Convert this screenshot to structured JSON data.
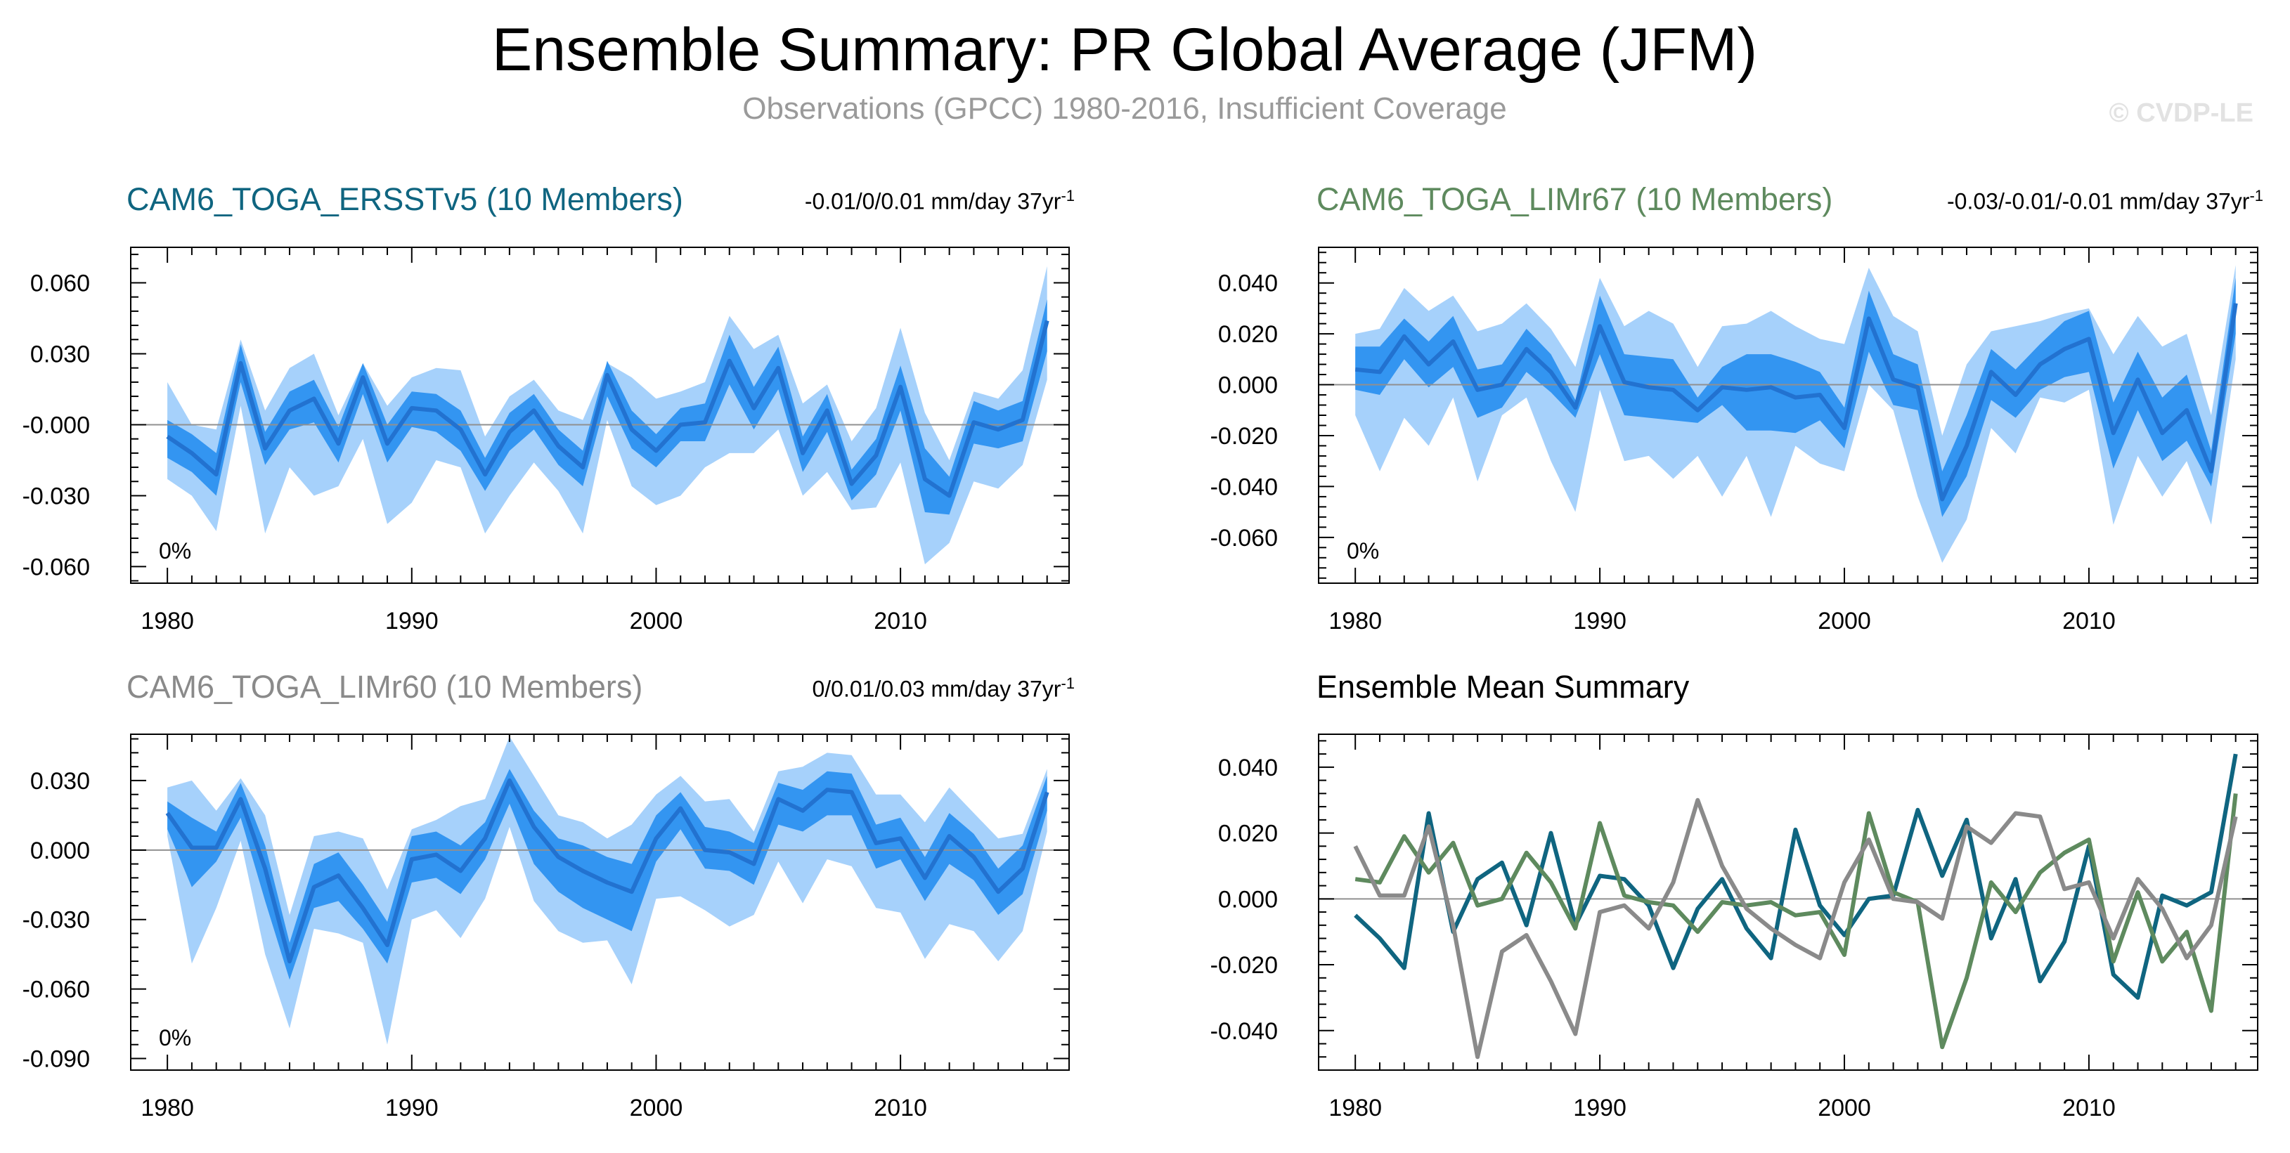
{
  "header": {
    "title": "Ensemble Summary: PR Global Average (JFM)",
    "subtitle": "Observations (GPCC) 1980-2016, Insufficient Coverage",
    "watermark": "© CVDP-LE"
  },
  "colors": {
    "band_outer": "#a6d1fb",
    "band_inner": "#3395f1",
    "mean_line": "#2272d0",
    "ersst": "#0f6580",
    "limr67": "#5e8a5e",
    "limr60": "#8a8a8a",
    "axis": "#000000",
    "zero_line": "#909090"
  },
  "panels": [
    {
      "id": "p1",
      "title": "CAM6_TOGA_ERSSTv5 (10 Members)",
      "title_color": "#0f6580",
      "stat_main": "-0.01/0/0.01 mm/day 37yr",
      "stat_sup": "-1",
      "pct": "0%"
    },
    {
      "id": "p2",
      "title": "CAM6_TOGA_LIMr67 (10 Members)",
      "title_color": "#5e8a5e",
      "stat_main": "-0.03/-0.01/-0.01 mm/day 37yr",
      "stat_sup": "-1",
      "pct": "0%"
    },
    {
      "id": "p3",
      "title": "CAM6_TOGA_LIMr60 (10 Members)",
      "title_color": "#8a8a8a",
      "stat_main": "0/0.01/0.03 mm/day 37yr",
      "stat_sup": "-1",
      "pct": "0%"
    },
    {
      "id": "p4",
      "title": "Ensemble Mean Summary",
      "title_color": "#000000"
    }
  ],
  "chart_data": [
    {
      "type": "area",
      "title": "CAM6_TOGA_ERSSTv5 (10 Members)",
      "x": [
        1980,
        1981,
        1982,
        1983,
        1984,
        1985,
        1986,
        1987,
        1988,
        1989,
        1990,
        1991,
        1992,
        1993,
        1994,
        1995,
        1996,
        1997,
        1998,
        1999,
        2000,
        2001,
        2002,
        2003,
        2004,
        2005,
        2006,
        2007,
        2008,
        2009,
        2010,
        2011,
        2012,
        2013,
        2014,
        2015,
        2016
      ],
      "xticks": [
        1980,
        1990,
        2000,
        2010
      ],
      "xtick_labels": [
        "1980",
        "1990",
        "2000",
        "2010"
      ],
      "ylim": [
        -0.067,
        0.075
      ],
      "yticks": [
        -0.06,
        -0.03,
        0.0,
        0.03,
        0.06
      ],
      "ytick_labels": [
        "-0.060",
        "-0.030",
        "-0.000",
        "0.030",
        "0.060"
      ],
      "mean": [
        -0.005,
        -0.012,
        -0.021,
        0.026,
        -0.01,
        0.006,
        0.011,
        -0.008,
        0.02,
        -0.008,
        0.007,
        0.006,
        -0.002,
        -0.021,
        -0.003,
        0.006,
        -0.009,
        -0.018,
        0.021,
        -0.002,
        -0.011,
        0.0,
        0.001,
        0.027,
        0.007,
        0.024,
        -0.012,
        0.006,
        -0.025,
        -0.013,
        0.016,
        -0.023,
        -0.03,
        0.001,
        -0.002,
        0.002,
        0.044
      ],
      "q25": [
        -0.014,
        -0.02,
        -0.03,
        0.018,
        -0.017,
        -0.002,
        0.001,
        -0.016,
        0.013,
        -0.016,
        -0.001,
        -0.003,
        -0.011,
        -0.028,
        -0.011,
        -0.002,
        -0.017,
        -0.026,
        0.012,
        -0.01,
        -0.018,
        -0.007,
        -0.007,
        0.017,
        -0.002,
        0.015,
        -0.02,
        -0.003,
        -0.032,
        -0.021,
        0.006,
        -0.037,
        -0.038,
        -0.008,
        -0.01,
        -0.007,
        0.031
      ],
      "q75": [
        0.002,
        -0.004,
        -0.012,
        0.034,
        -0.003,
        0.014,
        0.019,
        -0.001,
        0.026,
        0.0,
        0.014,
        0.013,
        0.006,
        -0.014,
        0.005,
        0.013,
        -0.002,
        -0.011,
        0.027,
        0.006,
        -0.004,
        0.007,
        0.009,
        0.038,
        0.016,
        0.033,
        -0.005,
        0.013,
        -0.019,
        -0.006,
        0.025,
        -0.01,
        -0.022,
        0.01,
        0.006,
        0.01,
        0.053
      ],
      "min": [
        -0.023,
        -0.03,
        -0.045,
        0.008,
        -0.046,
        -0.018,
        -0.03,
        -0.026,
        -0.006,
        -0.042,
        -0.033,
        -0.015,
        -0.018,
        -0.046,
        -0.03,
        -0.016,
        -0.028,
        -0.046,
        0.002,
        -0.026,
        -0.034,
        -0.03,
        -0.018,
        -0.012,
        -0.012,
        -0.002,
        -0.03,
        -0.02,
        -0.036,
        -0.035,
        -0.016,
        -0.059,
        -0.05,
        -0.024,
        -0.027,
        -0.017,
        0.019
      ],
      "max": [
        0.018,
        0.0,
        -0.002,
        0.036,
        0.006,
        0.024,
        0.03,
        0.004,
        0.026,
        0.008,
        0.02,
        0.024,
        0.023,
        -0.005,
        0.012,
        0.019,
        0.006,
        0.002,
        0.026,
        0.02,
        0.011,
        0.014,
        0.018,
        0.046,
        0.032,
        0.038,
        0.009,
        0.017,
        -0.007,
        0.007,
        0.041,
        0.005,
        -0.015,
        0.014,
        0.011,
        0.023,
        0.067
      ]
    },
    {
      "type": "area",
      "title": "CAM6_TOGA_LIMr67 (10 Members)",
      "x": [
        1980,
        1981,
        1982,
        1983,
        1984,
        1985,
        1986,
        1987,
        1988,
        1989,
        1990,
        1991,
        1992,
        1993,
        1994,
        1995,
        1996,
        1997,
        1998,
        1999,
        2000,
        2001,
        2002,
        2003,
        2004,
        2005,
        2006,
        2007,
        2008,
        2009,
        2010,
        2011,
        2012,
        2013,
        2014,
        2015,
        2016
      ],
      "xticks": [
        1980,
        1990,
        2000,
        2010
      ],
      "xtick_labels": [
        "1980",
        "1990",
        "2000",
        "2010"
      ],
      "ylim": [
        -0.078,
        0.054
      ],
      "yticks": [
        -0.06,
        -0.04,
        -0.02,
        0.0,
        0.02,
        0.04
      ],
      "ytick_labels": [
        "-0.060",
        "-0.040",
        "-0.020",
        "0.000",
        "0.020",
        "0.040"
      ],
      "mean": [
        0.006,
        0.005,
        0.019,
        0.008,
        0.017,
        -0.002,
        0.0,
        0.014,
        0.005,
        -0.009,
        0.023,
        0.001,
        -0.001,
        -0.002,
        -0.01,
        -0.001,
        -0.002,
        -0.001,
        -0.005,
        -0.004,
        -0.017,
        0.026,
        0.002,
        -0.001,
        -0.045,
        -0.024,
        0.005,
        -0.004,
        0.008,
        0.014,
        0.018,
        -0.019,
        0.002,
        -0.019,
        -0.01,
        -0.034,
        0.032
      ],
      "q25": [
        -0.002,
        -0.004,
        0.01,
        -0.001,
        0.007,
        -0.013,
        -0.009,
        0.005,
        -0.003,
        -0.013,
        0.012,
        -0.012,
        -0.013,
        -0.014,
        -0.015,
        -0.008,
        -0.018,
        -0.018,
        -0.019,
        -0.014,
        -0.025,
        0.013,
        -0.008,
        -0.01,
        -0.052,
        -0.036,
        -0.006,
        -0.013,
        -0.002,
        0.003,
        0.005,
        -0.033,
        -0.01,
        -0.03,
        -0.022,
        -0.04,
        0.02
      ],
      "q75": [
        0.015,
        0.015,
        0.026,
        0.017,
        0.027,
        0.006,
        0.008,
        0.022,
        0.012,
        -0.006,
        0.035,
        0.012,
        0.011,
        0.01,
        -0.005,
        0.007,
        0.012,
        0.012,
        0.009,
        0.005,
        -0.009,
        0.037,
        0.012,
        0.008,
        -0.034,
        -0.012,
        0.014,
        0.006,
        0.016,
        0.025,
        0.029,
        -0.007,
        0.013,
        -0.005,
        0.004,
        -0.026,
        0.042
      ],
      "min": [
        -0.012,
        -0.034,
        -0.013,
        -0.024,
        -0.005,
        -0.038,
        -0.012,
        -0.005,
        -0.03,
        -0.05,
        -0.002,
        -0.03,
        -0.028,
        -0.037,
        -0.028,
        -0.044,
        -0.028,
        -0.052,
        -0.024,
        -0.031,
        -0.034,
        0.0,
        -0.01,
        -0.044,
        -0.07,
        -0.053,
        -0.017,
        -0.027,
        -0.005,
        -0.007,
        -0.002,
        -0.055,
        -0.028,
        -0.044,
        -0.03,
        -0.055,
        0.01
      ],
      "max": [
        0.02,
        0.022,
        0.038,
        0.029,
        0.035,
        0.021,
        0.024,
        0.032,
        0.022,
        0.007,
        0.042,
        0.023,
        0.029,
        0.024,
        0.007,
        0.023,
        0.024,
        0.029,
        0.023,
        0.018,
        0.016,
        0.046,
        0.027,
        0.021,
        -0.02,
        0.008,
        0.021,
        0.023,
        0.025,
        0.028,
        0.03,
        0.012,
        0.027,
        0.015,
        0.02,
        -0.012,
        0.047
      ]
    },
    {
      "type": "area",
      "title": "CAM6_TOGA_LIMr60 (10 Members)",
      "x": [
        1980,
        1981,
        1982,
        1983,
        1984,
        1985,
        1986,
        1987,
        1988,
        1989,
        1990,
        1991,
        1992,
        1993,
        1994,
        1995,
        1996,
        1997,
        1998,
        1999,
        2000,
        2001,
        2002,
        2003,
        2004,
        2005,
        2006,
        2007,
        2008,
        2009,
        2010,
        2011,
        2012,
        2013,
        2014,
        2015,
        2016
      ],
      "xticks": [
        1980,
        1990,
        2000,
        2010
      ],
      "xtick_labels": [
        "1980",
        "1990",
        "2000",
        "2010"
      ],
      "ylim": [
        -0.095,
        0.05
      ],
      "yticks": [
        -0.09,
        -0.06,
        -0.03,
        0.0,
        0.03
      ],
      "ytick_labels": [
        "-0.090",
        "-0.060",
        "-0.030",
        "0.000",
        "0.030"
      ],
      "mean": [
        0.016,
        0.001,
        0.001,
        0.022,
        -0.008,
        -0.048,
        -0.016,
        -0.011,
        -0.025,
        -0.041,
        -0.004,
        -0.002,
        -0.009,
        0.005,
        0.03,
        0.01,
        -0.003,
        -0.009,
        -0.014,
        -0.018,
        0.005,
        0.018,
        0.0,
        -0.001,
        -0.006,
        0.022,
        0.017,
        0.026,
        0.025,
        0.003,
        0.005,
        -0.012,
        0.006,
        -0.003,
        -0.018,
        -0.008,
        0.025
      ],
      "q25": [
        0.009,
        -0.016,
        -0.005,
        0.014,
        -0.022,
        -0.056,
        -0.025,
        -0.022,
        -0.034,
        -0.049,
        -0.014,
        -0.012,
        -0.019,
        -0.004,
        0.02,
        -0.006,
        -0.018,
        -0.025,
        -0.03,
        -0.035,
        -0.005,
        0.009,
        -0.008,
        -0.009,
        -0.015,
        0.011,
        0.008,
        0.015,
        0.015,
        -0.008,
        -0.004,
        -0.022,
        -0.006,
        -0.013,
        -0.028,
        -0.019,
        0.017
      ],
      "q75": [
        0.021,
        0.014,
        0.008,
        0.029,
        0.002,
        -0.04,
        -0.006,
        -0.001,
        -0.015,
        -0.031,
        0.006,
        0.008,
        0.002,
        0.012,
        0.035,
        0.017,
        0.005,
        0.002,
        -0.003,
        -0.006,
        0.015,
        0.025,
        0.01,
        0.008,
        0.003,
        0.029,
        0.026,
        0.034,
        0.033,
        0.011,
        0.014,
        -0.003,
        0.016,
        0.007,
        -0.008,
        0.002,
        0.032
      ],
      "min": [
        0.006,
        -0.049,
        -0.025,
        0.004,
        -0.045,
        -0.077,
        -0.034,
        -0.036,
        -0.04,
        -0.084,
        -0.03,
        -0.026,
        -0.038,
        -0.021,
        0.01,
        -0.022,
        -0.035,
        -0.04,
        -0.039,
        -0.058,
        -0.021,
        -0.02,
        -0.026,
        -0.033,
        -0.028,
        -0.005,
        -0.023,
        -0.004,
        -0.007,
        -0.025,
        -0.027,
        -0.047,
        -0.032,
        -0.035,
        -0.048,
        -0.035,
        0.008
      ],
      "max": [
        0.027,
        0.03,
        0.017,
        0.031,
        0.015,
        -0.028,
        0.006,
        0.008,
        0.005,
        -0.017,
        0.009,
        0.013,
        0.019,
        0.022,
        0.049,
        0.032,
        0.015,
        0.012,
        0.005,
        0.011,
        0.024,
        0.032,
        0.021,
        0.022,
        0.008,
        0.034,
        0.036,
        0.042,
        0.041,
        0.024,
        0.024,
        0.012,
        0.027,
        0.016,
        0.005,
        0.007,
        0.035
      ]
    },
    {
      "type": "line",
      "title": "Ensemble Mean Summary",
      "x": [
        1980,
        1981,
        1982,
        1983,
        1984,
        1985,
        1986,
        1987,
        1988,
        1989,
        1990,
        1991,
        1992,
        1993,
        1994,
        1995,
        1996,
        1997,
        1998,
        1999,
        2000,
        2001,
        2002,
        2003,
        2004,
        2005,
        2006,
        2007,
        2008,
        2009,
        2010,
        2011,
        2012,
        2013,
        2014,
        2015,
        2016
      ],
      "xticks": [
        1980,
        1990,
        2000,
        2010
      ],
      "xtick_labels": [
        "1980",
        "1990",
        "2000",
        "2010"
      ],
      "ylim": [
        -0.052,
        0.05
      ],
      "yticks": [
        -0.04,
        -0.02,
        0.0,
        0.02,
        0.04
      ],
      "ytick_labels": [
        "-0.040",
        "-0.020",
        "0.000",
        "0.020",
        "0.040"
      ],
      "series": [
        {
          "name": "CAM6_TOGA_ERSSTv5",
          "color": "#0f6580",
          "values": [
            -0.005,
            -0.012,
            -0.021,
            0.026,
            -0.01,
            0.006,
            0.011,
            -0.008,
            0.02,
            -0.008,
            0.007,
            0.006,
            -0.002,
            -0.021,
            -0.003,
            0.006,
            -0.009,
            -0.018,
            0.021,
            -0.002,
            -0.011,
            0.0,
            0.001,
            0.027,
            0.007,
            0.024,
            -0.012,
            0.006,
            -0.025,
            -0.013,
            0.016,
            -0.023,
            -0.03,
            0.001,
            -0.002,
            0.002,
            0.044
          ]
        },
        {
          "name": "CAM6_TOGA_LIMr67",
          "color": "#5e8a5e",
          "values": [
            0.006,
            0.005,
            0.019,
            0.008,
            0.017,
            -0.002,
            0.0,
            0.014,
            0.005,
            -0.009,
            0.023,
            0.001,
            -0.001,
            -0.002,
            -0.01,
            -0.001,
            -0.002,
            -0.001,
            -0.005,
            -0.004,
            -0.017,
            0.026,
            0.002,
            -0.001,
            -0.045,
            -0.024,
            0.005,
            -0.004,
            0.008,
            0.014,
            0.018,
            -0.019,
            0.002,
            -0.019,
            -0.01,
            -0.034,
            0.032
          ]
        },
        {
          "name": "CAM6_TOGA_LIMr60",
          "color": "#8a8a8a",
          "values": [
            0.016,
            0.001,
            0.001,
            0.022,
            -0.008,
            -0.048,
            -0.016,
            -0.011,
            -0.025,
            -0.041,
            -0.004,
            -0.002,
            -0.009,
            0.005,
            0.03,
            0.01,
            -0.003,
            -0.009,
            -0.014,
            -0.018,
            0.005,
            0.018,
            0.0,
            -0.001,
            -0.006,
            0.022,
            0.017,
            0.026,
            0.025,
            0.003,
            0.005,
            -0.012,
            0.006,
            -0.003,
            -0.018,
            -0.008,
            0.025
          ]
        }
      ]
    }
  ]
}
